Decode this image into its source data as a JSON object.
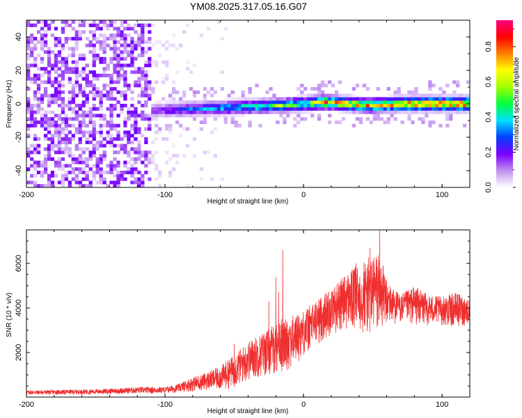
{
  "title": "YM08.2025.317.05.16.G07",
  "chart_data": [
    {
      "type": "heatmap",
      "xlabel": "Height of straight line (km)",
      "ylabel": "Frequency (Hz)",
      "xlim": [
        -200,
        120
      ],
      "ylim": [
        -50,
        50
      ],
      "xticks": [
        -200,
        -100,
        0,
        100
      ],
      "yticks": [
        -40,
        -20,
        0,
        20,
        40
      ],
      "colorbar": {
        "label": "Normalized spectral amplitude",
        "range": [
          0.0,
          0.95
        ],
        "ticks": [
          0.0,
          0.2,
          0.4,
          0.6,
          0.8
        ],
        "tick_labels": [
          "0.0",
          "0.2",
          "0.4",
          "0.6",
          "0.8"
        ],
        "colors": [
          "#ffffff",
          "#c090f0",
          "#7a00ff",
          "#0040ff",
          "#00e0ff",
          "#00ff40",
          "#a0ff00",
          "#ffff00",
          "#ff8000",
          "#ff0000",
          "#ff0080"
        ]
      },
      "description_of_values": {
        "noise_region_x": [
          -200,
          -110
        ],
        "noise_amplitude": 0.12,
        "noise_fade_x": [
          -110,
          -55
        ],
        "signal_band_x": [
          -110,
          120
        ],
        "signal_center_freq_points": [
          [
            -110,
            -4
          ],
          [
            -80,
            -3
          ],
          [
            -50,
            -2
          ],
          [
            -20,
            -1
          ],
          [
            0,
            0
          ],
          [
            15,
            1
          ],
          [
            30,
            0
          ],
          [
            45,
            -1
          ],
          [
            70,
            0
          ],
          [
            120,
            0
          ]
        ],
        "signal_amplitude_points": [
          [
            -110,
            0.2
          ],
          [
            -80,
            0.35
          ],
          [
            -50,
            0.45
          ],
          [
            -20,
            0.55
          ],
          [
            0,
            0.6
          ],
          [
            15,
            0.8
          ],
          [
            40,
            0.75
          ],
          [
            60,
            0.85
          ],
          [
            80,
            0.9
          ],
          [
            120,
            0.92
          ]
        ],
        "signal_halfwidth_hz": 6
      }
    },
    {
      "type": "line",
      "xlabel": "Height of straight line (km)",
      "ylabel": "SNR (10 * v/v)",
      "xlim": [
        -200,
        120
      ],
      "ylim": [
        0,
        7500
      ],
      "xticks": [
        -200,
        -100,
        0,
        100
      ],
      "yticks": [
        2000,
        4000,
        6000
      ],
      "color": "#f03030",
      "envelope": {
        "x": [
          -200,
          -150,
          -120,
          -100,
          -90,
          -80,
          -70,
          -60,
          -50,
          -40,
          -30,
          -20,
          -10,
          0,
          10,
          20,
          30,
          40,
          50,
          55,
          60,
          70,
          80,
          90,
          100,
          110,
          120
        ],
        "lower": [
          100,
          120,
          150,
          160,
          200,
          250,
          300,
          300,
          400,
          700,
          900,
          1000,
          1200,
          1800,
          2300,
          2800,
          3000,
          2800,
          2600,
          2800,
          3200,
          3300,
          3200,
          3200,
          3200,
          3100,
          3200
        ],
        "upper": [
          300,
          350,
          450,
          450,
          600,
          900,
          1100,
          1400,
          1900,
          2500,
          2900,
          3300,
          3600,
          3900,
          4400,
          4900,
          5500,
          6000,
          6400,
          6600,
          5200,
          4600,
          5000,
          4600,
          4500,
          4700,
          4400
        ]
      },
      "spikes": [
        [
          -50,
          2400
        ],
        [
          -25,
          4300
        ],
        [
          -20,
          5400
        ],
        [
          -18,
          4700
        ],
        [
          -15,
          6600
        ],
        [
          -16,
          3500
        ],
        [
          -10,
          3200
        ],
        [
          48,
          6700
        ],
        [
          55,
          7500
        ],
        [
          38,
          6000
        ]
      ]
    }
  ]
}
